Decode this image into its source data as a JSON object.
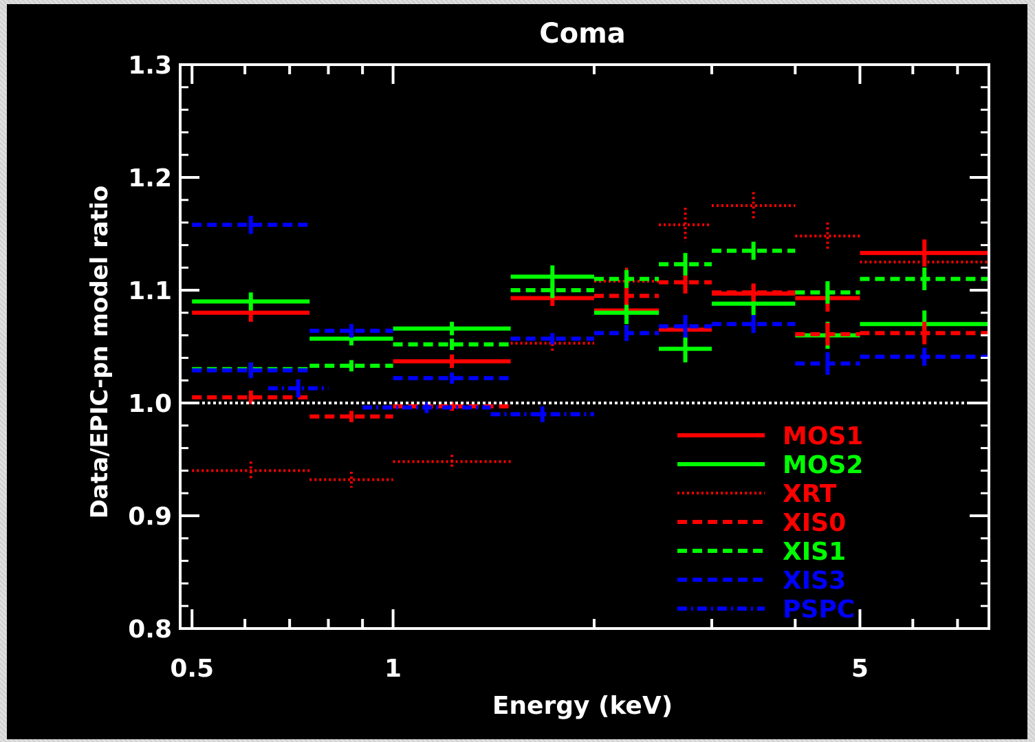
{
  "chart_data": {
    "type": "line",
    "title": "Coma",
    "xlabel": "Energy (keV)",
    "ylabel": "Data/EPIC-pn model ratio",
    "xscale": "log",
    "xlim": [
      0.48,
      7.8
    ],
    "ylim": [
      0.8,
      1.3
    ],
    "x_ticks": [
      0.5,
      1,
      5
    ],
    "x_tick_labels": [
      "0.5",
      "1",
      "5"
    ],
    "y_ticks": [
      0.8,
      0.9,
      1.0,
      1.1,
      1.2,
      1.3
    ],
    "y_tick_labels": [
      "0.8",
      "0.9",
      "1.0",
      "1.1",
      "1.2",
      "1.3"
    ],
    "reference_line": 1.0,
    "legend_position": "bottom-right",
    "series": [
      {
        "name": "MOS1",
        "color": "#ff0000",
        "style": "solid",
        "bins": [
          [
            0.5,
            0.75,
            1.08,
            0.008
          ],
          [
            1.0,
            1.5,
            1.037,
            0.006
          ],
          [
            1.5,
            2.0,
            1.093,
            0.007
          ],
          [
            2.0,
            2.5,
            1.082,
            0.008
          ],
          [
            2.5,
            3.0,
            1.065,
            0.012
          ],
          [
            3.0,
            4.0,
            1.097,
            0.008
          ],
          [
            4.0,
            5.0,
            1.093,
            0.012
          ],
          [
            5.0,
            7.8,
            1.133,
            0.012
          ]
        ]
      },
      {
        "name": "MOS2",
        "color": "#00ff00",
        "style": "solid",
        "bins": [
          [
            0.5,
            0.75,
            1.09,
            0.008
          ],
          [
            0.75,
            1.0,
            1.057,
            0.006
          ],
          [
            1.0,
            1.5,
            1.066,
            0.006
          ],
          [
            1.5,
            2.0,
            1.112,
            0.01
          ],
          [
            2.0,
            2.5,
            1.08,
            0.01
          ],
          [
            2.5,
            3.0,
            1.048,
            0.012
          ],
          [
            3.0,
            4.0,
            1.088,
            0.01
          ],
          [
            4.0,
            5.0,
            1.06,
            0.012
          ],
          [
            5.0,
            7.8,
            1.07,
            0.012
          ]
        ]
      },
      {
        "name": "XRT",
        "color": "#ff0000",
        "style": "dotted",
        "bins": [
          [
            0.5,
            0.75,
            0.94,
            0.008
          ],
          [
            0.75,
            1.0,
            0.932,
            0.007
          ],
          [
            1.0,
            1.5,
            0.948,
            0.006
          ],
          [
            1.5,
            2.0,
            1.053,
            0.008
          ],
          [
            2.0,
            2.5,
            1.108,
            0.012
          ],
          [
            2.5,
            3.0,
            1.158,
            0.015
          ],
          [
            3.0,
            4.0,
            1.175,
            0.012
          ],
          [
            4.0,
            5.0,
            1.148,
            0.012
          ],
          [
            5.0,
            7.8,
            1.125,
            0.012
          ]
        ]
      },
      {
        "name": "XIS0",
        "color": "#ff0000",
        "style": "dashed",
        "bins": [
          [
            0.5,
            0.75,
            1.005,
            0.006
          ],
          [
            0.75,
            1.0,
            0.988,
            0.005
          ],
          [
            1.0,
            1.5,
            0.997,
            0.004
          ],
          [
            2.0,
            2.5,
            1.095,
            0.008
          ],
          [
            2.5,
            3.0,
            1.107,
            0.01
          ],
          [
            3.0,
            4.0,
            1.098,
            0.008
          ],
          [
            4.0,
            5.0,
            1.061,
            0.01
          ],
          [
            5.0,
            7.8,
            1.062,
            0.01
          ]
        ]
      },
      {
        "name": "XIS1",
        "color": "#00ff00",
        "style": "dashed",
        "bins": [
          [
            0.5,
            0.75,
            1.03,
            0.006
          ],
          [
            0.75,
            1.0,
            1.033,
            0.005
          ],
          [
            1.0,
            1.5,
            1.052,
            0.005
          ],
          [
            1.5,
            2.0,
            1.1,
            0.007
          ],
          [
            2.0,
            2.5,
            1.11,
            0.008
          ],
          [
            2.5,
            3.0,
            1.123,
            0.01
          ],
          [
            3.0,
            4.0,
            1.135,
            0.008
          ],
          [
            4.0,
            5.0,
            1.098,
            0.01
          ],
          [
            5.0,
            7.8,
            1.11,
            0.01
          ]
        ]
      },
      {
        "name": "XIS3",
        "color": "#0000ff",
        "style": "dashed",
        "bins": [
          [
            0.5,
            0.75,
            1.158,
            0.008
          ],
          [
            0.5,
            0.75,
            1.029,
            0.007
          ],
          [
            0.75,
            1.0,
            1.064,
            0.006
          ],
          [
            1.0,
            1.5,
            1.022,
            0.005
          ],
          [
            1.5,
            2.0,
            1.057,
            0.005
          ],
          [
            2.0,
            2.5,
            1.062,
            0.007
          ],
          [
            2.5,
            3.0,
            1.068,
            0.01
          ],
          [
            3.0,
            4.0,
            1.07,
            0.008
          ],
          [
            4.0,
            5.0,
            1.035,
            0.01
          ],
          [
            5.0,
            7.8,
            1.041,
            0.008
          ]
        ]
      },
      {
        "name": "PSPC",
        "color": "#0000ff",
        "style": "dashdot",
        "bins": [
          [
            0.65,
            0.8,
            1.013,
            0.008
          ],
          [
            0.9,
            1.4,
            0.996,
            0.005
          ],
          [
            1.4,
            2.0,
            0.99,
            0.007
          ]
        ]
      }
    ]
  }
}
